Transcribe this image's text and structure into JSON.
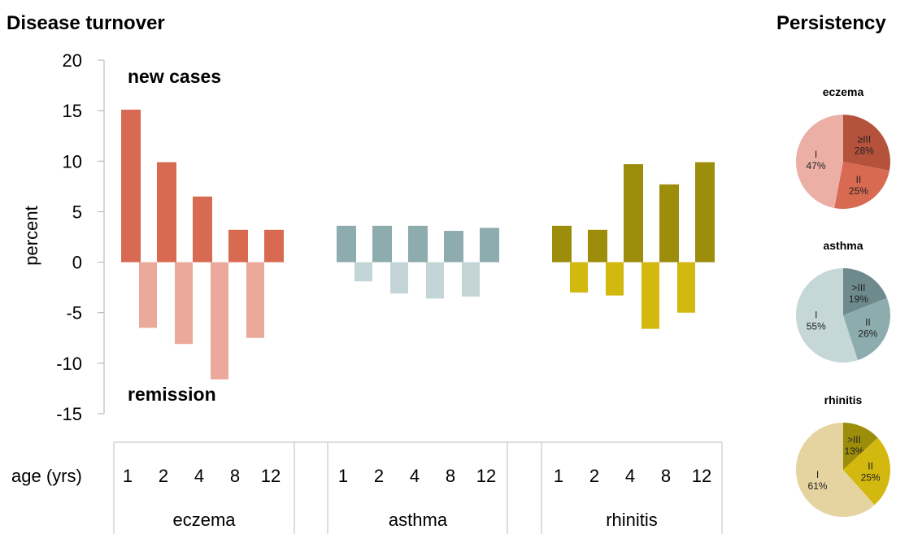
{
  "headings": {
    "main": "Disease turnover",
    "side": "Persistency"
  },
  "annotations": {
    "new_cases": "new cases",
    "remission": "remission"
  },
  "age_label": "age (yrs)",
  "colors": {
    "eczema": {
      "new": "#D96A52",
      "remission": "#EBA99B"
    },
    "asthma": {
      "new": "#8DACAE",
      "remission": "#C3D5D6"
    },
    "rhinitis": {
      "new": "#9C8D0B",
      "remission": "#D2B80F"
    }
  },
  "chart_data": [
    {
      "type": "bar",
      "title": "Disease turnover",
      "ylabel": "percent",
      "ylim": [
        -15,
        20
      ],
      "yticks": [
        "20",
        "15",
        "10",
        "5",
        "0",
        "-5",
        "-10",
        "-15"
      ],
      "xlabel": "age (yrs)",
      "groups": [
        {
          "name": "eczema",
          "ages": [
            "1",
            "2",
            "4",
            "8",
            "12"
          ],
          "new_cases": [
            15.1,
            9.9,
            6.5,
            3.2,
            3.2
          ],
          "remission": [
            -6.5,
            -8.1,
            -11.6,
            -7.5,
            null
          ]
        },
        {
          "name": "asthma",
          "ages": [
            "1",
            "2",
            "4",
            "8",
            "12"
          ],
          "new_cases": [
            3.6,
            3.6,
            3.6,
            3.1,
            3.4
          ],
          "remission": [
            -1.9,
            -3.1,
            -3.6,
            -3.4,
            null
          ]
        },
        {
          "name": "rhinitis",
          "ages": [
            "1",
            "2",
            "4",
            "8",
            "12"
          ],
          "new_cases": [
            3.6,
            3.2,
            9.7,
            7.7,
            9.9
          ],
          "remission": [
            -3.0,
            -3.3,
            -6.6,
            -5.0,
            null
          ]
        }
      ]
    },
    {
      "type": "pie",
      "title": "eczema",
      "slices": [
        {
          "label": "≥III",
          "value": 28,
          "text": "28%",
          "color": "#B4523C"
        },
        {
          "label": "II",
          "value": 25,
          "text": "25%",
          "color": "#D96A52"
        },
        {
          "label": "I",
          "value": 47,
          "text": "47%",
          "color": "#EBAFA5"
        }
      ]
    },
    {
      "type": "pie",
      "title": "asthma",
      "slices": [
        {
          "label": ">III",
          "value": 19,
          "text": "19%",
          "color": "#6E8A8C"
        },
        {
          "label": "II",
          "value": 26,
          "text": "26%",
          "color": "#8DACAE"
        },
        {
          "label": "I",
          "value": 55,
          "text": "55%",
          "color": "#C6D7D8"
        }
      ]
    },
    {
      "type": "pie",
      "title": "rhinitis",
      "slices": [
        {
          "label": ">III",
          "value": 13,
          "text": "13%",
          "color": "#9C8D0B"
        },
        {
          "label": "II",
          "value": 25,
          "text": "25%",
          "color": "#D2B80F"
        },
        {
          "label": "I",
          "value": 61,
          "text": "61%",
          "color": "#E5D3A0"
        }
      ]
    }
  ]
}
